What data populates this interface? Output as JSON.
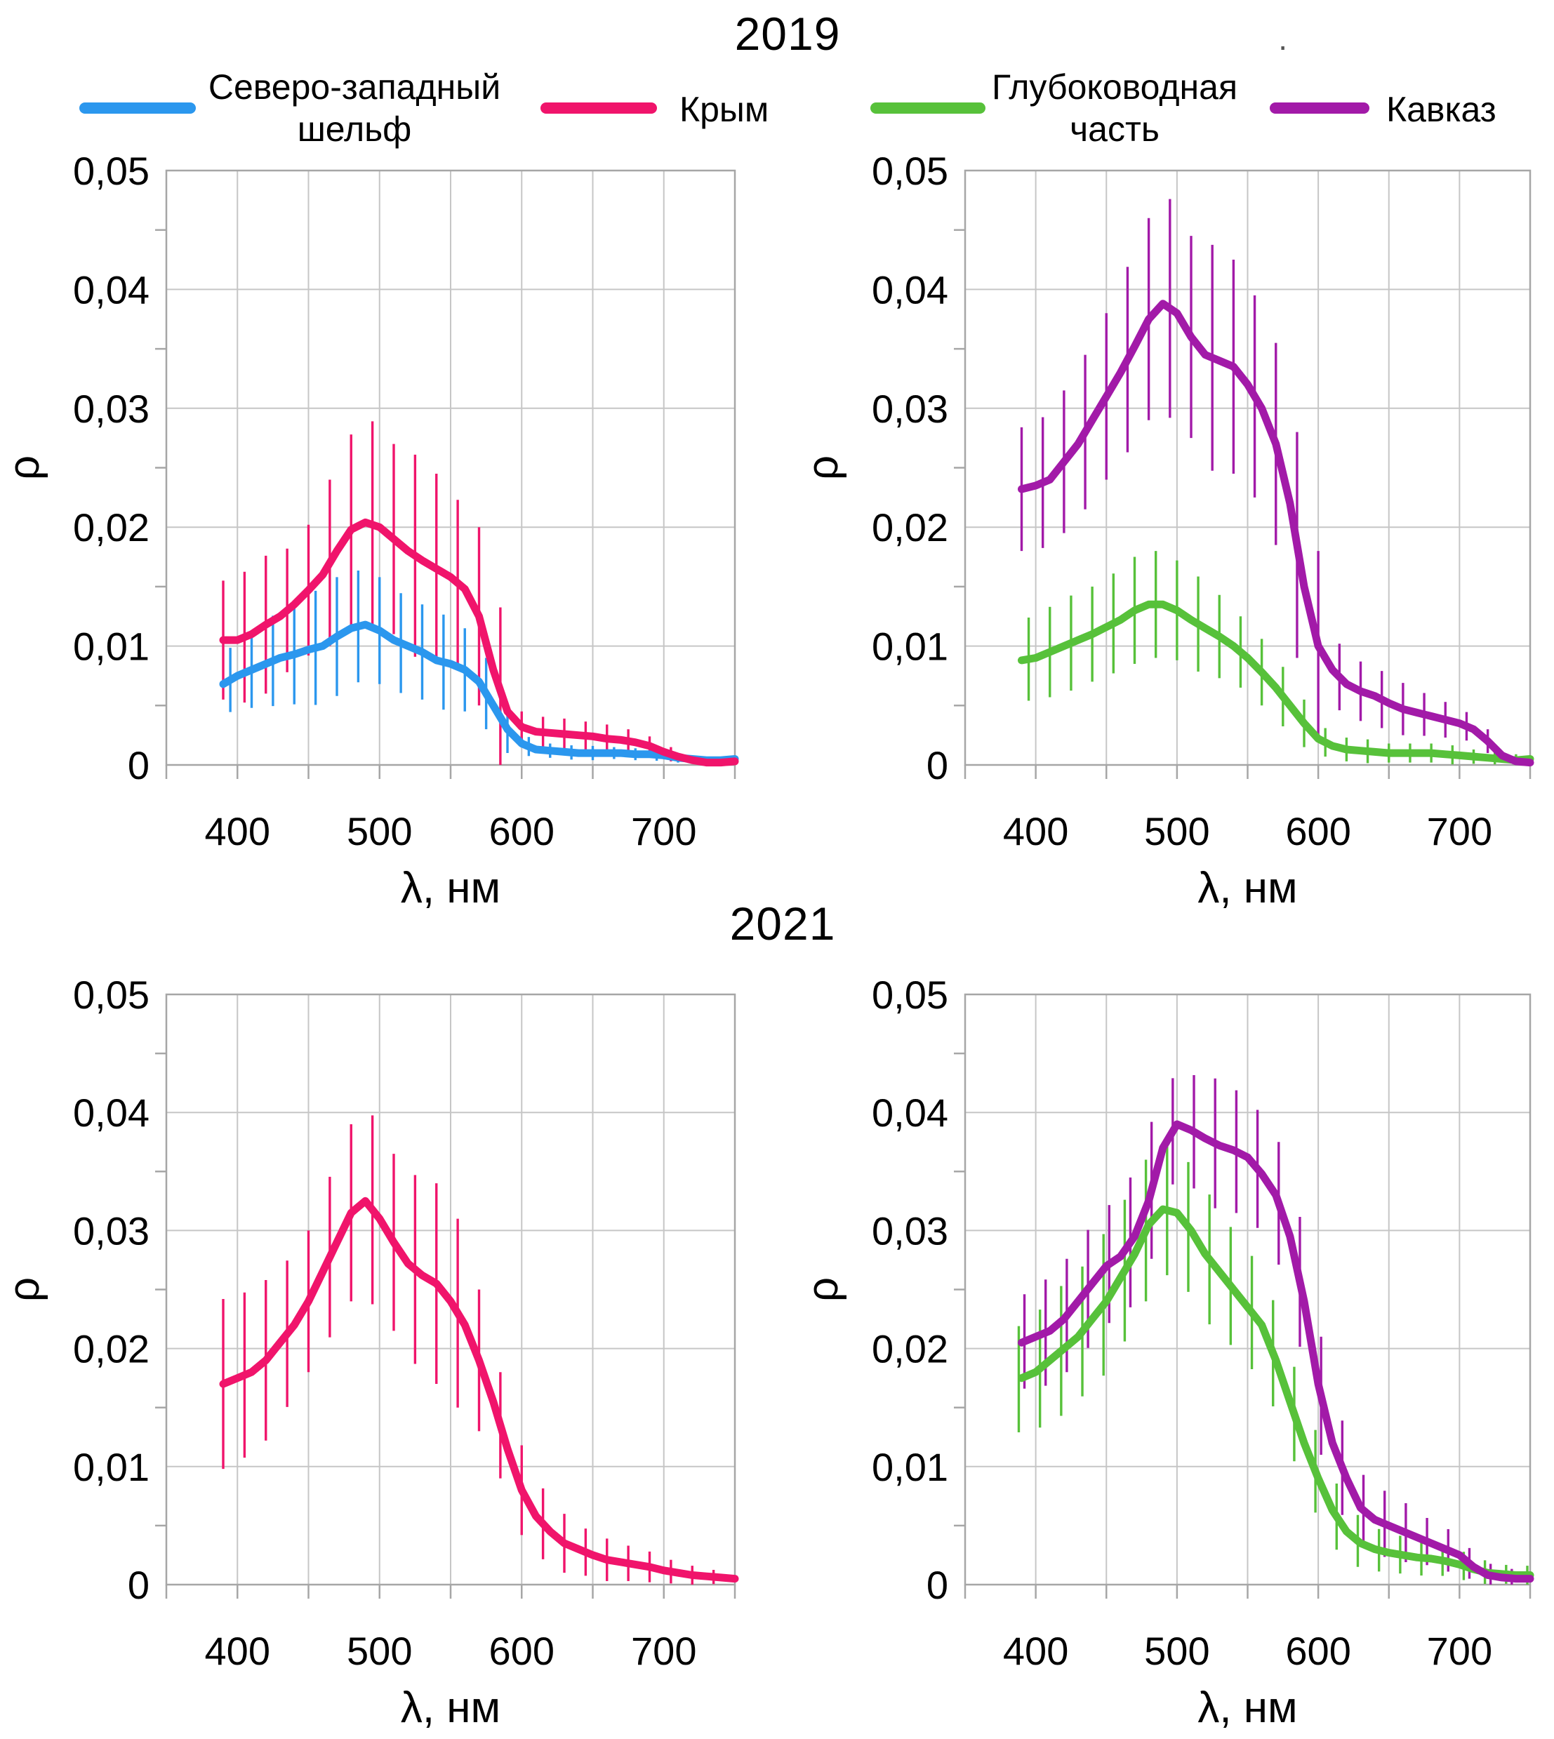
{
  "header": {
    "title_2019": "2019",
    "title_2021": "2021",
    "stray_mark": "·"
  },
  "legend": [
    {
      "label": "Северо-западный шельф",
      "color": "#2B97EE"
    },
    {
      "label": "Крым",
      "color": "#F0146B"
    },
    {
      "label": "Глубоководная часть",
      "color": "#57C13A"
    },
    {
      "label": "Кавказ",
      "color": "#A21AA8"
    }
  ],
  "colors": {
    "grid": "#C6C6C6",
    "axis": "#A6A6A6",
    "text": "#000000"
  },
  "axes": {
    "x_label": "λ, нм",
    "y_label": "ρ",
    "x_min": 350,
    "x_max": 750,
    "x_grid_step": 50,
    "y_min": 0,
    "y_max": 0.05,
    "y_grid_step": 0.01,
    "y_minor_step": 0.005,
    "x_ticks": [
      {
        "v": 400,
        "label": "400"
      },
      {
        "v": 500,
        "label": "500"
      },
      {
        "v": 600,
        "label": "600"
      },
      {
        "v": 700,
        "label": "700"
      }
    ],
    "y_ticks": [
      {
        "v": 0.05,
        "label": "0,05"
      },
      {
        "v": 0.04,
        "label": "0,04"
      },
      {
        "v": 0.03,
        "label": "0,03"
      },
      {
        "v": 0.02,
        "label": "0,02"
      },
      {
        "v": 0.01,
        "label": "0,01"
      },
      {
        "v": 0,
        "label": "0"
      }
    ]
  },
  "chart_data": [
    {
      "id": "chart-2019-left",
      "type": "line",
      "year": "2019",
      "panel": "left",
      "series": [
        {
          "name": "Северо-западный шельф",
          "color": "#2B97EE",
          "x_start": 390,
          "x_step": 10,
          "y": [
            0.0068,
            0.0075,
            0.008,
            0.0085,
            0.009,
            0.0093,
            0.0097,
            0.01,
            0.0108,
            0.0115,
            0.0118,
            0.0113,
            0.0105,
            0.01,
            0.0095,
            0.0088,
            0.0085,
            0.008,
            0.007,
            0.005,
            0.003,
            0.0018,
            0.0013,
            0.0012,
            0.0011,
            0.001,
            0.001,
            0.001,
            0.001,
            0.0009,
            0.0009,
            0.0008,
            0.0006,
            0.0005,
            0.0004,
            0.0004,
            0.0005
          ],
          "err_x": [
            395,
            410,
            425,
            440,
            455,
            470,
            485,
            500,
            515,
            530,
            545,
            560,
            575,
            590,
            605,
            620,
            635,
            650,
            665,
            680,
            695,
            710
          ],
          "err": [
            0.0027,
            0.0032,
            0.0038,
            0.0042,
            0.0048,
            0.005,
            0.0047,
            0.0045,
            0.0042,
            0.004,
            0.004,
            0.0035,
            0.003,
            0.002,
            0.0008,
            0.0006,
            0.0006,
            0.0006,
            0.0005,
            0.0005,
            0.0005,
            0.0004
          ]
        },
        {
          "name": "Крым",
          "color": "#F0146B",
          "x_start": 390,
          "x_step": 10,
          "y": [
            0.0105,
            0.0105,
            0.011,
            0.0118,
            0.0125,
            0.0135,
            0.0147,
            0.016,
            0.018,
            0.0198,
            0.0204,
            0.02,
            0.019,
            0.018,
            0.0172,
            0.0165,
            0.0158,
            0.0148,
            0.0125,
            0.008,
            0.0045,
            0.0032,
            0.0028,
            0.0027,
            0.0026,
            0.0025,
            0.0024,
            0.0022,
            0.0021,
            0.0019,
            0.0016,
            0.0011,
            0.0007,
            0.0004,
            0.0002,
            0.0002,
            0.0003
          ],
          "err_x": [
            390,
            405,
            420,
            435,
            450,
            465,
            480,
            495,
            510,
            525,
            540,
            555,
            570,
            585,
            600,
            615,
            630,
            645,
            660,
            675,
            690,
            705
          ],
          "err": [
            0.005,
            0.0055,
            0.0058,
            0.0052,
            0.0055,
            0.007,
            0.008,
            0.0087,
            0.008,
            0.0085,
            0.008,
            0.007,
            0.0075,
            0.007,
            0.0013,
            0.0013,
            0.0013,
            0.0012,
            0.0012,
            0.001,
            0.0008,
            0.0006
          ]
        }
      ]
    },
    {
      "id": "chart-2019-right",
      "type": "line",
      "year": "2019",
      "panel": "right",
      "series": [
        {
          "name": "Глубоководная часть",
          "color": "#57C13A",
          "x_start": 390,
          "x_step": 10,
          "y": [
            0.0088,
            0.009,
            0.0095,
            0.01,
            0.0105,
            0.011,
            0.0116,
            0.0122,
            0.013,
            0.0135,
            0.0135,
            0.013,
            0.0122,
            0.0115,
            0.0108,
            0.01,
            0.009,
            0.0078,
            0.0065,
            0.005,
            0.0035,
            0.0022,
            0.0016,
            0.0013,
            0.0012,
            0.0011,
            0.001,
            0.001,
            0.001,
            0.001,
            0.0009,
            0.0008,
            0.0007,
            0.0006,
            0.0005,
            0.0004,
            0.0005
          ],
          "err_x": [
            395,
            410,
            425,
            440,
            455,
            470,
            485,
            500,
            515,
            530,
            545,
            560,
            575,
            590,
            605,
            620,
            635,
            650,
            665,
            680,
            695,
            710,
            725,
            740
          ],
          "err": [
            0.0035,
            0.0038,
            0.004,
            0.004,
            0.0042,
            0.0045,
            0.0045,
            0.0042,
            0.004,
            0.0035,
            0.003,
            0.0028,
            0.0025,
            0.002,
            0.0012,
            0.001,
            0.001,
            0.0008,
            0.0008,
            0.0008,
            0.0008,
            0.0006,
            0.0005,
            0.0005
          ]
        },
        {
          "name": "Кавказ",
          "color": "#A21AA8",
          "x_start": 390,
          "x_step": 10,
          "y": [
            0.0232,
            0.0235,
            0.024,
            0.0255,
            0.027,
            0.029,
            0.031,
            0.033,
            0.0352,
            0.0375,
            0.0388,
            0.038,
            0.036,
            0.0345,
            0.034,
            0.0335,
            0.032,
            0.03,
            0.027,
            0.022,
            0.015,
            0.01,
            0.008,
            0.0068,
            0.0062,
            0.0058,
            0.0052,
            0.0047,
            0.0044,
            0.0041,
            0.0038,
            0.0035,
            0.003,
            0.002,
            0.0008,
            0.0003,
            0.0002
          ],
          "err_x": [
            390,
            405,
            420,
            435,
            450,
            465,
            480,
            495,
            510,
            525,
            540,
            555,
            570,
            585,
            600,
            615,
            630,
            645,
            660,
            675,
            690,
            705,
            720
          ],
          "err": [
            0.0052,
            0.0055,
            0.006,
            0.0065,
            0.007,
            0.0078,
            0.0085,
            0.0092,
            0.0085,
            0.0095,
            0.009,
            0.0085,
            0.0085,
            0.0095,
            0.008,
            0.0028,
            0.0025,
            0.0024,
            0.0022,
            0.0018,
            0.0015,
            0.0012,
            0.001
          ]
        }
      ]
    },
    {
      "id": "chart-2021-left",
      "type": "line",
      "year": "2021",
      "panel": "left",
      "series": [
        {
          "name": "Крым",
          "color": "#F0146B",
          "x_start": 390,
          "x_step": 10,
          "y": [
            0.017,
            0.0175,
            0.018,
            0.019,
            0.0205,
            0.022,
            0.024,
            0.0265,
            0.029,
            0.0315,
            0.0325,
            0.031,
            0.029,
            0.0272,
            0.0262,
            0.0255,
            0.024,
            0.022,
            0.019,
            0.0155,
            0.0115,
            0.008,
            0.0058,
            0.0045,
            0.0035,
            0.003,
            0.0025,
            0.0021,
            0.0019,
            0.0017,
            0.0015,
            0.0012,
            0.001,
            0.0008,
            0.0007,
            0.0006,
            0.0005
          ],
          "err_x": [
            390,
            405,
            420,
            435,
            450,
            465,
            480,
            495,
            510,
            525,
            540,
            555,
            570,
            585,
            600,
            615,
            630,
            645,
            660,
            675,
            690,
            705,
            720,
            735
          ],
          "err": [
            0.0072,
            0.007,
            0.0068,
            0.0062,
            0.006,
            0.0068,
            0.0075,
            0.008,
            0.0075,
            0.008,
            0.0085,
            0.008,
            0.006,
            0.0045,
            0.0038,
            0.003,
            0.0025,
            0.002,
            0.0018,
            0.0015,
            0.0013,
            0.001,
            0.0008,
            0.0006
          ]
        }
      ]
    },
    {
      "id": "chart-2021-right",
      "type": "line",
      "year": "2021",
      "panel": "right",
      "series": [
        {
          "name": "Глубоководная часть",
          "color": "#57C13A",
          "x_start": 390,
          "x_step": 10,
          "y": [
            0.0175,
            0.018,
            0.019,
            0.02,
            0.021,
            0.0225,
            0.024,
            0.026,
            0.028,
            0.0305,
            0.0318,
            0.0315,
            0.03,
            0.028,
            0.0265,
            0.025,
            0.0235,
            0.022,
            0.019,
            0.0155,
            0.012,
            0.009,
            0.0063,
            0.0045,
            0.0035,
            0.003,
            0.0027,
            0.0025,
            0.0023,
            0.0022,
            0.002,
            0.0017,
            0.0013,
            0.001,
            0.0009,
            0.0008,
            0.0008
          ],
          "err_x": [
            388,
            403,
            418,
            433,
            448,
            463,
            478,
            493,
            508,
            523,
            538,
            553,
            568,
            583,
            598,
            613,
            628,
            643,
            658,
            673,
            688,
            703,
            718,
            733,
            748
          ],
          "err": [
            0.0045,
            0.005,
            0.0055,
            0.0055,
            0.006,
            0.006,
            0.006,
            0.0055,
            0.0055,
            0.0055,
            0.005,
            0.0048,
            0.0045,
            0.004,
            0.0035,
            0.0028,
            0.0022,
            0.0018,
            0.0016,
            0.0015,
            0.0013,
            0.0012,
            0.001,
            0.0008,
            0.0008
          ]
        },
        {
          "name": "Кавказ",
          "color": "#A21AA8",
          "x_start": 390,
          "x_step": 10,
          "y": [
            0.0205,
            0.021,
            0.0215,
            0.0225,
            0.024,
            0.0255,
            0.027,
            0.0278,
            0.0295,
            0.0325,
            0.037,
            0.039,
            0.0385,
            0.0378,
            0.0372,
            0.0368,
            0.0362,
            0.0348,
            0.033,
            0.0295,
            0.024,
            0.017,
            0.012,
            0.009,
            0.0065,
            0.0055,
            0.005,
            0.0045,
            0.004,
            0.0035,
            0.003,
            0.0025,
            0.0015,
            0.0008,
            0.0006,
            0.0005,
            0.0005
          ],
          "err_x": [
            392,
            407,
            422,
            437,
            452,
            467,
            482,
            497,
            512,
            527,
            542,
            557,
            572,
            587,
            602,
            617,
            632,
            647,
            662,
            677,
            692,
            707,
            722,
            737
          ],
          "err": [
            0.004,
            0.0045,
            0.0048,
            0.005,
            0.005,
            0.0055,
            0.0058,
            0.0045,
            0.0048,
            0.0055,
            0.0052,
            0.005,
            0.0052,
            0.0055,
            0.005,
            0.004,
            0.003,
            0.0028,
            0.0025,
            0.002,
            0.0018,
            0.0013,
            0.001,
            0.0008
          ]
        }
      ]
    }
  ]
}
